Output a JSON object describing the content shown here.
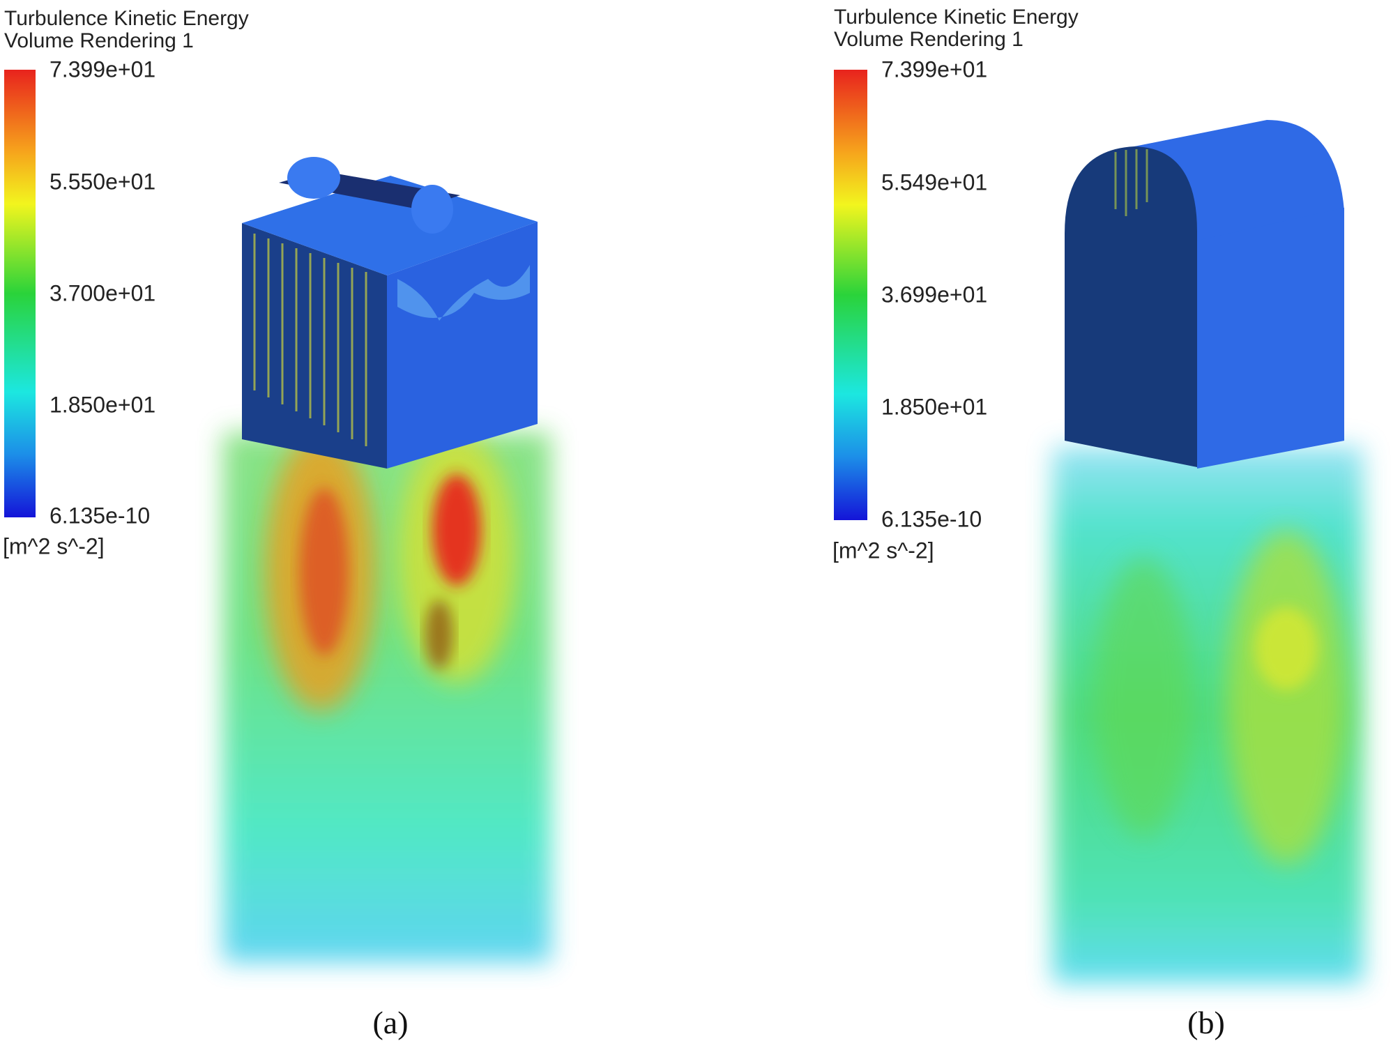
{
  "panels": [
    {
      "title": "Turbulence Kinetic Energy",
      "subtitle": "Volume Rendering 1",
      "legend_ticks": [
        "7.399e+01",
        "5.550e+01",
        "3.700e+01",
        "1.850e+01",
        "6.135e-10"
      ],
      "unit": "[m^2 s^-2]",
      "caption": "(a)"
    },
    {
      "title": "Turbulence Kinetic Energy",
      "subtitle": "Volume Rendering 1",
      "legend_ticks": [
        "7.399e+01",
        "5.549e+01",
        "3.699e+01",
        "1.850e+01",
        "6.135e-10"
      ],
      "unit": "[m^2 s^-2]",
      "caption": "(b)"
    }
  ]
}
